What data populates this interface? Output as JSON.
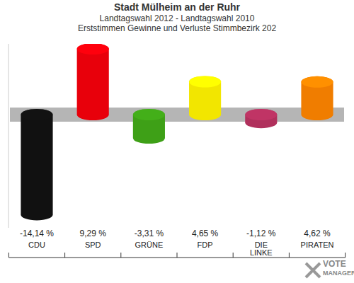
{
  "chart_data": {
    "type": "bar",
    "title": "Stadt Mülheim an der Ruhr",
    "subtitle": [
      "Landtagswahl 2012 - Landtagswahl 2010",
      "Erststimmen Gewinne und Verluste Stimmbezirk 202"
    ],
    "categories": [
      "CDU",
      "SPD",
      "GRÜNE",
      "FDP",
      "DIE LINKE",
      "PIRATEN"
    ],
    "values": [
      -14.14,
      9.29,
      -3.31,
      4.65,
      -1.12,
      4.62
    ],
    "value_labels": [
      "-14,14 %",
      "9,29 %",
      "-3,31 %",
      "4,65 %",
      "-1,12 %",
      "4,62 %"
    ],
    "colors": [
      "#111111",
      "#e8000b",
      "#3ea017",
      "#f2e600",
      "#b0305c",
      "#f07d00"
    ],
    "ylim": [
      -16,
      10
    ],
    "yticks": [
      0
    ],
    "tick_labels": false,
    "data_labels": true,
    "annotations": [
      "VOTE",
      "MANAGER"
    ]
  }
}
